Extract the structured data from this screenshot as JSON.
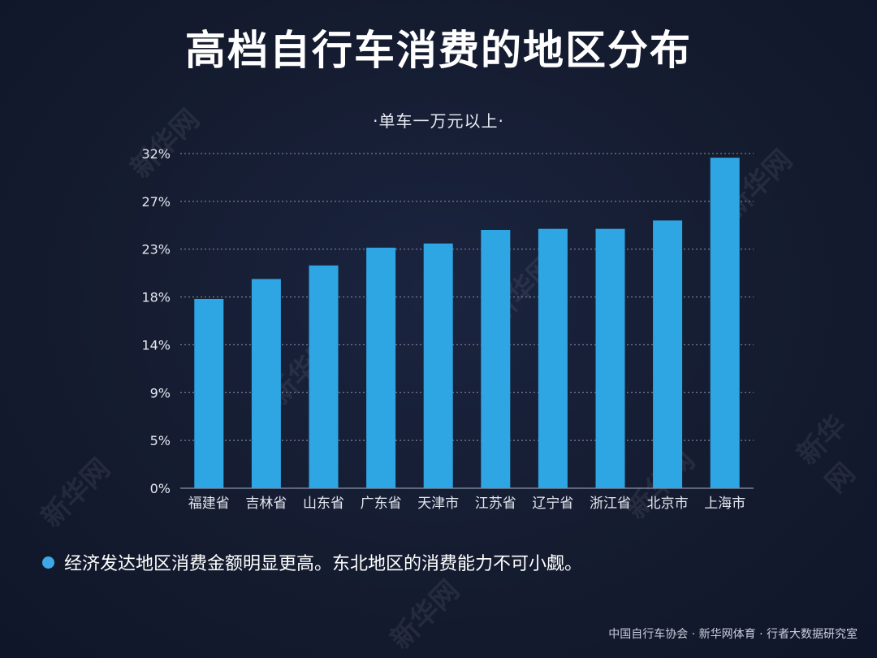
{
  "title": "高档自行车消费的地区分布",
  "subtitle": "·单车一万元以上·",
  "note": "经济发达地区消费金额明显更高。东北地区的消费能力不可小觑。",
  "source": "中国自行车协会 · 新华网体育 · 行者大数据研究室",
  "colors": {
    "bar": "#2fa6e4",
    "grid": "#8a93a8",
    "accent": "#3fa7e6",
    "background": "#141b2e"
  },
  "chart_data": {
    "type": "bar",
    "categories": [
      "福建省",
      "吉林省",
      "山东省",
      "广东省",
      "天津市",
      "江苏省",
      "辽宁省",
      "浙江省",
      "北京市",
      "上海市"
    ],
    "values": [
      18.1,
      20.0,
      21.3,
      23.0,
      23.4,
      24.7,
      24.8,
      24.8,
      25.6,
      31.6
    ],
    "ytick_labels": [
      "0%",
      "5%",
      "9%",
      "14%",
      "18%",
      "23%",
      "27%",
      "32%"
    ],
    "ylim": [
      0,
      32
    ],
    "grid": true,
    "xlabel": "",
    "ylabel": ""
  }
}
